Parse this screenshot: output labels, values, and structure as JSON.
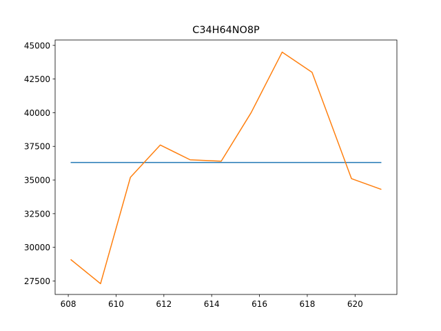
{
  "chart_data": {
    "type": "line",
    "title": "C34H64NO8P",
    "xlabel": "",
    "ylabel": "",
    "xlim": [
      607.45,
      621.75
    ],
    "ylim": [
      26500,
      45400
    ],
    "grid": false,
    "x_ticks": [
      608,
      610,
      612,
      614,
      616,
      618,
      620
    ],
    "x_tick_labels": [
      "608",
      "610",
      "612",
      "614",
      "616",
      "618",
      "620"
    ],
    "y_ticks": [
      27500,
      30000,
      32500,
      35000,
      37500,
      40000,
      42500,
      45000
    ],
    "y_tick_labels": [
      "27500",
      "30000",
      "32500",
      "35000",
      "37500",
      "40000",
      "42500",
      "45000"
    ],
    "series": [
      {
        "color": "#1f77b4",
        "x": [
          608.1,
          621.1
        ],
        "y": [
          36300,
          36300
        ]
      },
      {
        "color": "#ff7f0e",
        "x": [
          608.1,
          609.35,
          610.6,
          611.85,
          613.1,
          614.4,
          615.65,
          616.95,
          618.2,
          619.85,
          621.1
        ],
        "y": [
          29100,
          27300,
          35200,
          37600,
          36500,
          36400,
          40000,
          44500,
          43000,
          35100,
          34300
        ]
      }
    ]
  }
}
